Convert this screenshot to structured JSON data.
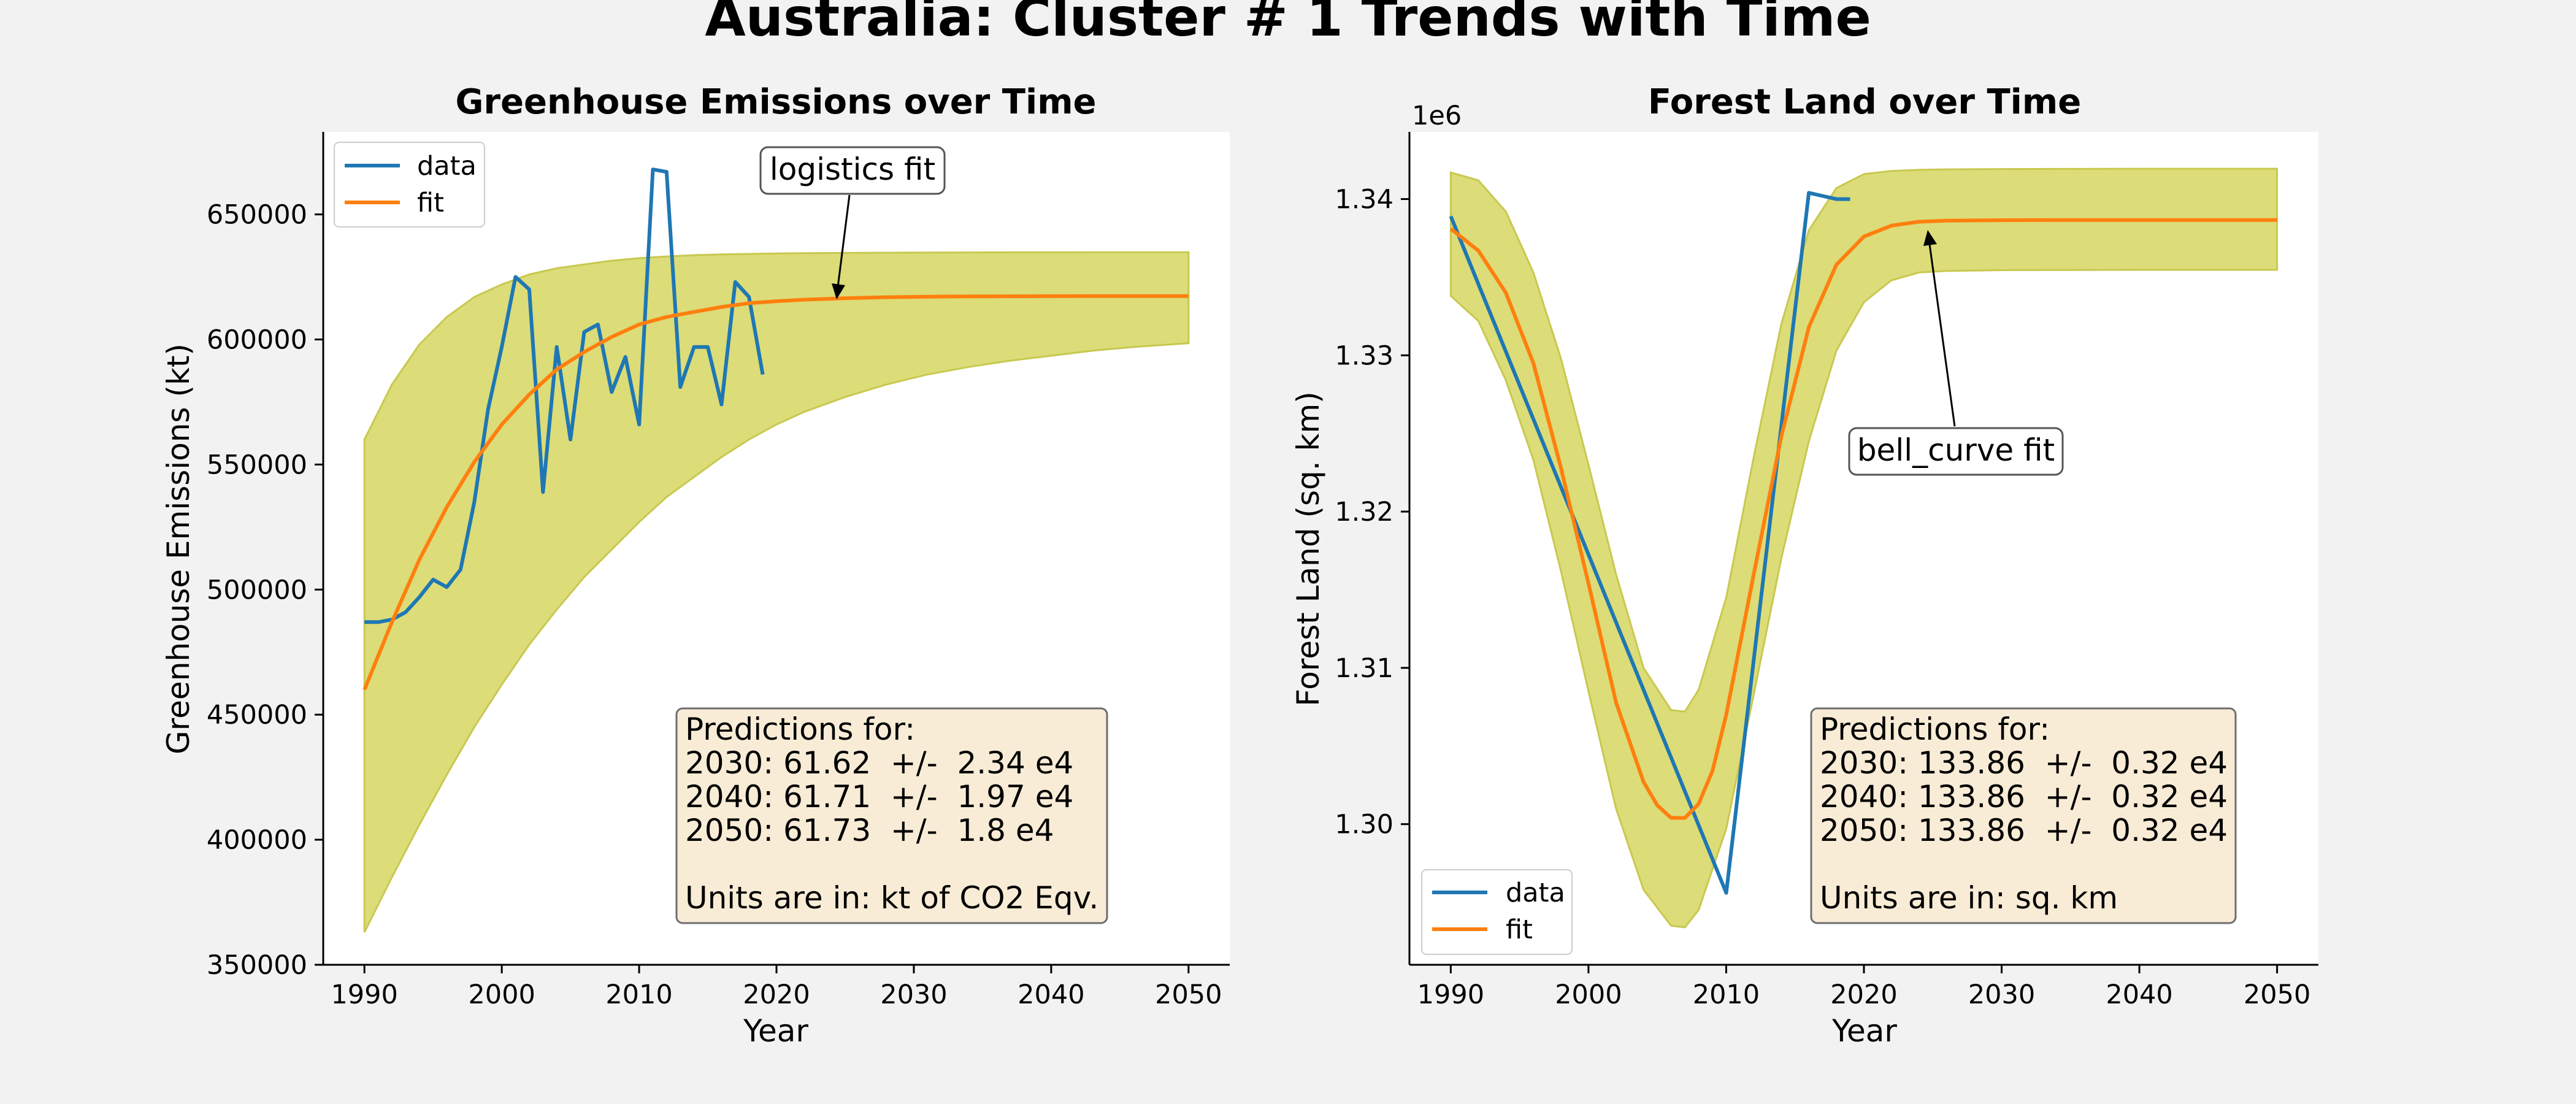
{
  "figure_title": "Australia: Cluster # 1 Trends with Time",
  "colors": {
    "data": "#1f77b4",
    "fit": "#ff7f0e",
    "band_fill": "#dcdc78",
    "band_edge": "#c8c850",
    "pred_box": "#f8ecd6"
  },
  "chart_data": [
    {
      "type": "line",
      "title": "Greenhouse Emissions over Time",
      "xlabel": "Year",
      "ylabel": "Greenhouse Emissions (kt)",
      "offset_label": "",
      "xlim": [
        1987,
        2053
      ],
      "ylim": [
        350000,
        683000
      ],
      "xticks": [
        1990,
        2000,
        2010,
        2020,
        2030,
        2040,
        2050
      ],
      "yticks": [
        350000,
        400000,
        450000,
        500000,
        550000,
        600000,
        650000
      ],
      "ytick_labels": [
        "350000",
        "400000",
        "450000",
        "500000",
        "550000",
        "600000",
        "650000"
      ],
      "legend": {
        "position": "upper-left",
        "entries": [
          "data",
          "fit"
        ]
      },
      "series": [
        {
          "name": "data",
          "x": [
            1990,
            1991,
            1992,
            1993,
            1994,
            1995,
            1996,
            1997,
            1998,
            1999,
            2000,
            2001,
            2002,
            2003,
            2004,
            2005,
            2006,
            2007,
            2008,
            2009,
            2010,
            2011,
            2012,
            2013,
            2014,
            2015,
            2016,
            2017,
            2018,
            2019
          ],
          "y": [
            487000,
            487000,
            488000,
            491000,
            497000,
            504000,
            501000,
            508000,
            535000,
            572000,
            597000,
            625000,
            620000,
            539000,
            597000,
            560000,
            603000,
            606000,
            579000,
            593000,
            566000,
            668000,
            667000,
            581000,
            597000,
            597000,
            574000,
            623000,
            617000,
            586000
          ]
        },
        {
          "name": "fit",
          "x": [
            1990,
            1992,
            1994,
            1996,
            1998,
            2000,
            2002,
            2004,
            2006,
            2008,
            2010,
            2012,
            2014,
            2016,
            2018,
            2020,
            2022,
            2025,
            2028,
            2031,
            2034,
            2037,
            2040,
            2043,
            2046,
            2050
          ],
          "y": [
            460000,
            487000,
            512000,
            533000,
            551000,
            566000,
            578000,
            588000,
            595000,
            601000,
            606000,
            609000,
            611000,
            613000,
            614500,
            615300,
            615900,
            616500,
            616900,
            617100,
            617200,
            617250,
            617300,
            617320,
            617330,
            617340
          ]
        }
      ],
      "band": {
        "x": [
          1990,
          1992,
          1994,
          1996,
          1998,
          2000,
          2002,
          2004,
          2006,
          2008,
          2010,
          2012,
          2014,
          2016,
          2018,
          2020,
          2022,
          2025,
          2028,
          2031,
          2034,
          2037,
          2040,
          2043,
          2046,
          2050
        ],
        "upper": [
          560000,
          582000,
          598000,
          609000,
          617000,
          622000,
          626000,
          628500,
          630000,
          631500,
          632500,
          633200,
          633700,
          634000,
          634200,
          634400,
          634500,
          634600,
          634700,
          634750,
          634800,
          634830,
          634850,
          634860,
          634870,
          634880
        ],
        "lower": [
          363000,
          385000,
          406000,
          426000,
          445000,
          462000,
          478000,
          492000,
          505000,
          516000,
          527000,
          537000,
          545000,
          553000,
          560000,
          566000,
          571000,
          577000,
          582000,
          586000,
          589000,
          591500,
          593500,
          595500,
          597000,
          598500
        ]
      },
      "annotation": {
        "text": "logistics fit",
        "x": 2025,
        "y": 617000
      },
      "predictions": {
        "header": "Predictions for:",
        "lines": [
          "2030: 61.62  +/-  2.34 e4",
          "2040: 61.71  +/-  1.97 e4",
          "2050: 61.73  +/-  1.8 e4"
        ],
        "units": "Units are in: kt of CO2 Eqv."
      }
    },
    {
      "type": "line",
      "title": "Forest Land over Time",
      "xlabel": "Year",
      "ylabel": "Forest Land (sq. km)",
      "offset_label": "1e6",
      "xlim": [
        1987,
        2053
      ],
      "ylim": [
        1291000,
        1344300
      ],
      "xticks": [
        1990,
        2000,
        2010,
        2020,
        2030,
        2040,
        2050
      ],
      "yticks": [
        1300000,
        1310000,
        1320000,
        1330000,
        1340000
      ],
      "ytick_labels": [
        "1.30",
        "1.31",
        "1.32",
        "1.33",
        "1.34"
      ],
      "legend": {
        "position": "lower-left",
        "entries": [
          "data",
          "fit"
        ]
      },
      "series": [
        {
          "name": "data",
          "x": [
            1990,
            2010,
            2016,
            2017,
            2018,
            2019
          ],
          "y": [
            1338900,
            1295600,
            1340400,
            1340200,
            1340000,
            1340000
          ]
        },
        {
          "name": "fit",
          "x": [
            1990,
            1992,
            1994,
            1996,
            1998,
            2000,
            2002,
            2004,
            2005,
            2006,
            2007,
            2008,
            2009,
            2010,
            2012,
            2014,
            2016,
            2018,
            2020,
            2022,
            2024,
            2026,
            2030,
            2035,
            2040,
            2050
          ],
          "y": [
            1338100,
            1336700,
            1334000,
            1329500,
            1322800,
            1315400,
            1307800,
            1302700,
            1301200,
            1300400,
            1300400,
            1301300,
            1303400,
            1307000,
            1316000,
            1324800,
            1331800,
            1335800,
            1337600,
            1338300,
            1338550,
            1338620,
            1338650,
            1338660,
            1338660,
            1338660
          ]
        }
      ],
      "band": {
        "x": [
          1990,
          1992,
          1994,
          1996,
          1998,
          2000,
          2002,
          2004,
          2006,
          2007,
          2008,
          2010,
          2012,
          2014,
          2016,
          2018,
          2020,
          2022,
          2024,
          2026,
          2030,
          2035,
          2040,
          2050
        ],
        "upper": [
          1341700,
          1341200,
          1339200,
          1335300,
          1329800,
          1323000,
          1316000,
          1310000,
          1307300,
          1307200,
          1308600,
          1314500,
          1323500,
          1332000,
          1338000,
          1340700,
          1341600,
          1341800,
          1341870,
          1341900,
          1341920,
          1341930,
          1341940,
          1341940
        ],
        "lower": [
          1333800,
          1332200,
          1328400,
          1323300,
          1316200,
          1308500,
          1301000,
          1295800,
          1293500,
          1293400,
          1294500,
          1299700,
          1308300,
          1317000,
          1324500,
          1330300,
          1333400,
          1334800,
          1335300,
          1335400,
          1335450,
          1335460,
          1335470,
          1335470
        ]
      },
      "annotation": {
        "text": "bell_curve fit",
        "x": 2025,
        "y": 1338300
      },
      "predictions": {
        "header": "Predictions for:",
        "lines": [
          "2030: 133.86  +/-  0.32 e4",
          "2040: 133.86  +/-  0.32 e4",
          "2050: 133.86  +/-  0.32 e4"
        ],
        "units": "Units are in: sq. km"
      }
    }
  ]
}
